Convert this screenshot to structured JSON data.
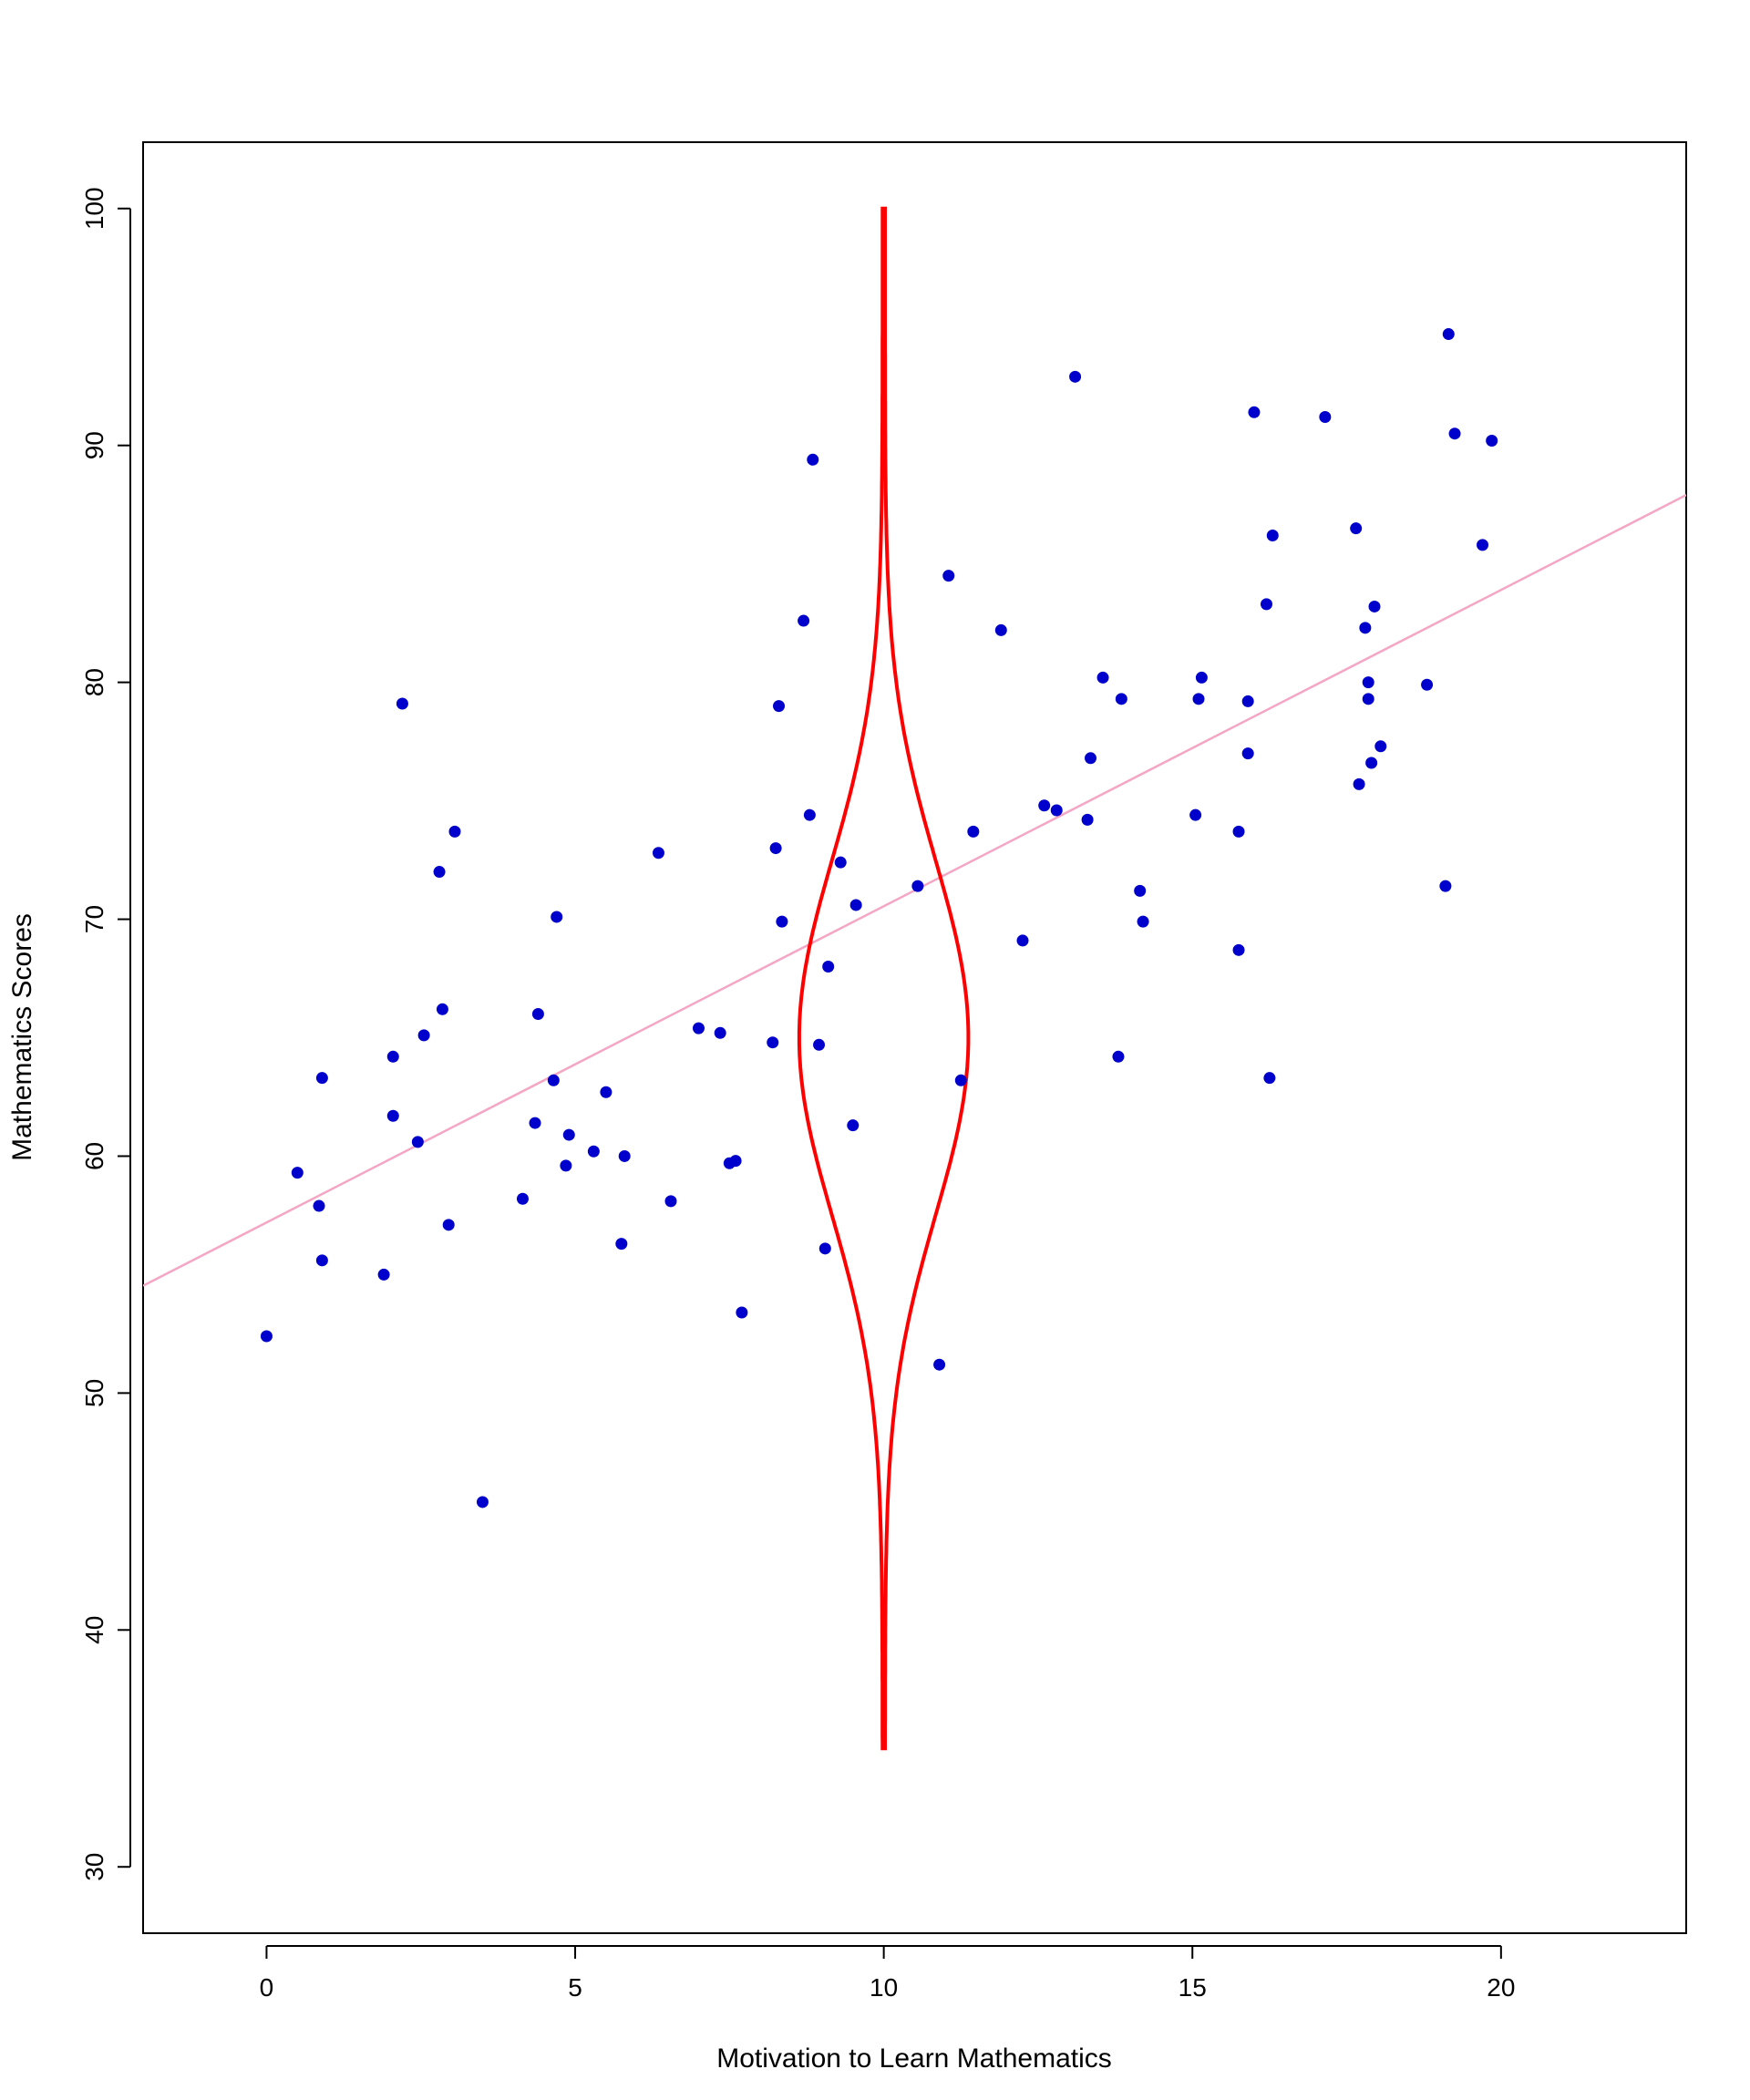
{
  "chart_data": {
    "type": "scatter",
    "title": "",
    "xlabel": "Motivation to Learn Mathematics",
    "ylabel": "Mathematics Scores",
    "xlim": [
      -2,
      23
    ],
    "ylim": [
      27.2,
      102.8
    ],
    "x_ticks": [
      0,
      5,
      10,
      15,
      20
    ],
    "y_ticks": [
      30,
      40,
      50,
      60,
      70,
      80,
      90,
      100
    ],
    "grid": false,
    "legend": "none",
    "colors": {
      "points": "#0000cd",
      "regression": "#f4a6c4",
      "density": "#ff0000"
    },
    "points": [
      {
        "x": 0.0,
        "y": 52.4
      },
      {
        "x": 0.5,
        "y": 59.3
      },
      {
        "x": 0.85,
        "y": 57.9
      },
      {
        "x": 0.9,
        "y": 63.3
      },
      {
        "x": 0.9,
        "y": 55.6
      },
      {
        "x": 1.9,
        "y": 55.0
      },
      {
        "x": 2.05,
        "y": 64.2
      },
      {
        "x": 2.05,
        "y": 61.7
      },
      {
        "x": 2.2,
        "y": 79.1
      },
      {
        "x": 2.45,
        "y": 60.6
      },
      {
        "x": 2.55,
        "y": 65.1
      },
      {
        "x": 2.8,
        "y": 72.0
      },
      {
        "x": 2.85,
        "y": 66.2
      },
      {
        "x": 2.95,
        "y": 57.1
      },
      {
        "x": 3.05,
        "y": 73.7
      },
      {
        "x": 3.5,
        "y": 45.4
      },
      {
        "x": 4.15,
        "y": 58.2
      },
      {
        "x": 4.35,
        "y": 61.4
      },
      {
        "x": 4.4,
        "y": 66.0
      },
      {
        "x": 4.65,
        "y": 63.2
      },
      {
        "x": 4.7,
        "y": 70.1
      },
      {
        "x": 4.85,
        "y": 59.6
      },
      {
        "x": 4.9,
        "y": 60.9
      },
      {
        "x": 5.3,
        "y": 60.2
      },
      {
        "x": 5.5,
        "y": 62.7
      },
      {
        "x": 5.75,
        "y": 56.3
      },
      {
        "x": 5.8,
        "y": 60.0
      },
      {
        "x": 6.35,
        "y": 72.8
      },
      {
        "x": 6.55,
        "y": 58.1
      },
      {
        "x": 7.0,
        "y": 65.4
      },
      {
        "x": 7.35,
        "y": 65.2
      },
      {
        "x": 7.5,
        "y": 59.7
      },
      {
        "x": 7.6,
        "y": 59.8
      },
      {
        "x": 7.7,
        "y": 53.4
      },
      {
        "x": 8.2,
        "y": 64.8
      },
      {
        "x": 8.25,
        "y": 73.0
      },
      {
        "x": 8.3,
        "y": 79.0
      },
      {
        "x": 8.35,
        "y": 69.9
      },
      {
        "x": 8.7,
        "y": 82.6
      },
      {
        "x": 8.8,
        "y": 74.4
      },
      {
        "x": 8.85,
        "y": 89.4
      },
      {
        "x": 8.95,
        "y": 64.7
      },
      {
        "x": 9.05,
        "y": 56.1
      },
      {
        "x": 9.1,
        "y": 68.0
      },
      {
        "x": 9.3,
        "y": 72.4
      },
      {
        "x": 9.5,
        "y": 61.3
      },
      {
        "x": 9.55,
        "y": 70.6
      },
      {
        "x": 10.55,
        "y": 71.4
      },
      {
        "x": 10.9,
        "y": 51.2
      },
      {
        "x": 11.05,
        "y": 84.5
      },
      {
        "x": 11.25,
        "y": 63.2
      },
      {
        "x": 11.45,
        "y": 73.7
      },
      {
        "x": 11.9,
        "y": 82.2
      },
      {
        "x": 12.25,
        "y": 69.1
      },
      {
        "x": 12.6,
        "y": 74.8
      },
      {
        "x": 12.8,
        "y": 74.6
      },
      {
        "x": 13.1,
        "y": 92.9
      },
      {
        "x": 13.3,
        "y": 74.2
      },
      {
        "x": 13.35,
        "y": 76.8
      },
      {
        "x": 13.55,
        "y": 80.2
      },
      {
        "x": 13.8,
        "y": 64.2
      },
      {
        "x": 13.85,
        "y": 79.3
      },
      {
        "x": 14.15,
        "y": 71.2
      },
      {
        "x": 14.2,
        "y": 69.9
      },
      {
        "x": 15.05,
        "y": 74.4
      },
      {
        "x": 15.1,
        "y": 79.3
      },
      {
        "x": 15.15,
        "y": 80.2
      },
      {
        "x": 15.75,
        "y": 68.7
      },
      {
        "x": 15.75,
        "y": 73.7
      },
      {
        "x": 15.9,
        "y": 77.0
      },
      {
        "x": 15.9,
        "y": 79.2
      },
      {
        "x": 16.0,
        "y": 91.4
      },
      {
        "x": 16.2,
        "y": 83.3
      },
      {
        "x": 16.25,
        "y": 63.3
      },
      {
        "x": 16.3,
        "y": 86.2
      },
      {
        "x": 17.15,
        "y": 91.2
      },
      {
        "x": 17.65,
        "y": 86.5
      },
      {
        "x": 17.7,
        "y": 75.7
      },
      {
        "x": 17.8,
        "y": 82.3
      },
      {
        "x": 17.85,
        "y": 79.3
      },
      {
        "x": 17.85,
        "y": 80.0
      },
      {
        "x": 17.9,
        "y": 76.6
      },
      {
        "x": 17.95,
        "y": 83.2
      },
      {
        "x": 18.05,
        "y": 77.3
      },
      {
        "x": 18.8,
        "y": 79.9
      },
      {
        "x": 19.1,
        "y": 71.4
      },
      {
        "x": 19.15,
        "y": 94.7
      },
      {
        "x": 19.25,
        "y": 90.5
      },
      {
        "x": 19.7,
        "y": 85.8
      },
      {
        "x": 19.85,
        "y": 90.2
      }
    ],
    "regression_line": {
      "intercept": 57.2,
      "slope": 1.335
    },
    "density_curve": {
      "center_x": 10,
      "mean": 65,
      "sd": 7.5,
      "peak_width": 1.35,
      "y_range": [
        35,
        100
      ]
    }
  }
}
